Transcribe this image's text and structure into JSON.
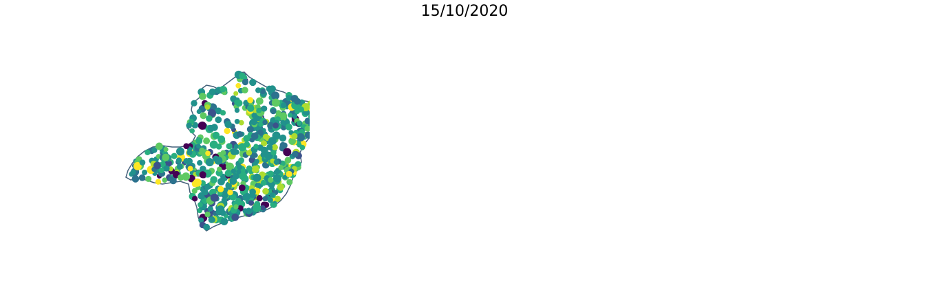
{
  "title": "15/10/2020",
  "maps": [
    {
      "id": "points",
      "style": "proportional-points",
      "colors": [
        "#440154",
        "#3b528b",
        "#2c728e",
        "#21918c",
        "#28ae80",
        "#5ec962",
        "#addc30",
        "#fde725"
      ],
      "outline": "#44607a"
    },
    {
      "id": "choropleth",
      "style": "continuous-choropleth",
      "colors": [
        "#440154",
        "#3b528b",
        "#2c728e",
        "#21918c",
        "#28ae80",
        "#5ec962",
        "#addc30",
        "#fde725"
      ]
    },
    {
      "id": "classes",
      "style": "categorical-choropleth",
      "colors": [
        "#4e6b8c",
        "#f7c04a",
        "#f7991f",
        "#f44141"
      ]
    }
  ]
}
